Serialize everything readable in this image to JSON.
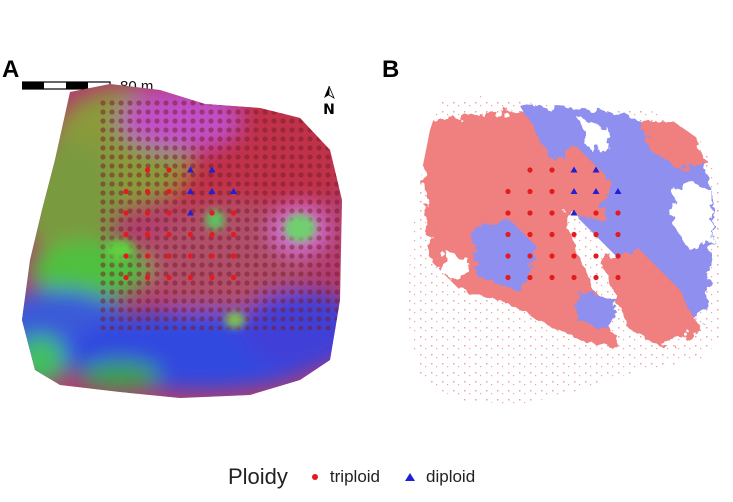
{
  "panels": {
    "a_label": "A",
    "b_label": "B"
  },
  "scale_bar": {
    "label": "80 m",
    "segments": 4
  },
  "north_arrow": {
    "label": "N"
  },
  "legend": {
    "title": "Ploidy",
    "items": [
      {
        "label": "triploid",
        "symbol": "circle",
        "color": "#e41a1c"
      },
      {
        "label": "diploid",
        "symbol": "triangle",
        "color": "#1f1fd6"
      }
    ]
  },
  "colors": {
    "triploid_area": "#f08080",
    "diploid_area": "#8f8ff0",
    "triploid_point": "#e41a1c",
    "diploid_point": "#1f1fd6"
  },
  "sample_grid": {
    "rows": 6,
    "cols": 6,
    "diploid_cells": [
      [
        0,
        3
      ],
      [
        0,
        4
      ],
      [
        1,
        3
      ],
      [
        1,
        4
      ],
      [
        1,
        5
      ],
      [
        2,
        3
      ]
    ],
    "missing_cells": [
      [
        0,
        0
      ],
      [
        0,
        5
      ]
    ]
  }
}
